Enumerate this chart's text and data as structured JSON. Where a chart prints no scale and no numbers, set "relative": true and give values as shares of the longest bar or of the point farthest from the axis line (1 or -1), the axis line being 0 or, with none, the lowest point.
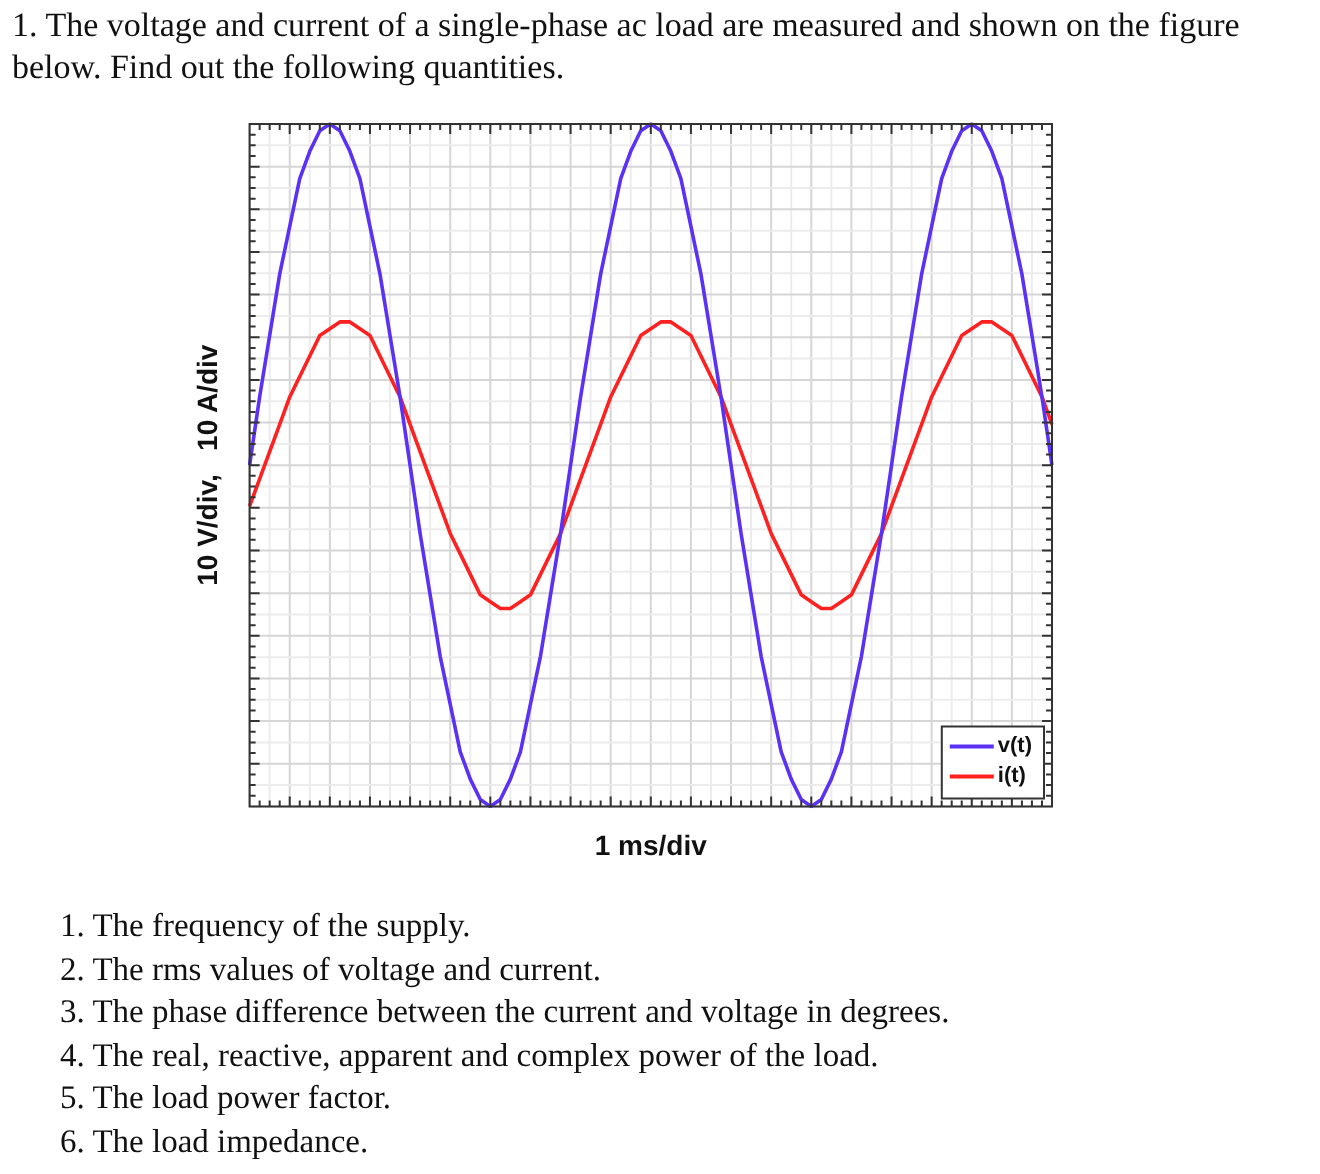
{
  "chart_data": {
    "type": "line",
    "relative": true,
    "title": "1. The voltage and current of a single-phase ac load are measured and shown on the figure below. Find out the following quantities.",
    "xlabel": "1 ms/div",
    "ylabel": "10 V/div,   10 A/div",
    "legend": "bottom right",
    "grid": true,
    "marker": "none",
    "line_style": "solid",
    "categories": [
      null,
      null,
      null,
      null,
      null,
      null,
      null,
      null,
      null,
      null,
      null,
      null,
      null,
      null,
      null,
      null,
      null,
      null,
      null,
      null,
      null,
      null,
      null,
      null,
      null,
      null,
      null,
      null,
      null,
      null,
      null,
      null,
      null,
      null,
      null,
      null,
      null,
      null,
      null,
      null,
      null,
      null,
      null,
      null,
      null,
      null,
      null,
      null,
      null,
      null,
      null,
      null,
      null,
      null,
      null,
      null,
      null,
      null,
      null,
      null,
      null,
      null,
      null,
      null,
      null,
      null,
      null,
      null,
      null,
      null,
      null,
      null,
      null,
      null,
      null,
      null,
      null,
      null,
      null,
      null,
      null
    ],
    "series": [
      {
        "name": "v(t)",
        "color": "#5b32f5",
        "values": [
          0.5,
          0.6,
          0.69,
          0.78,
          0.85,
          0.92,
          0.96,
          0.99,
          1,
          0.99,
          0.96,
          0.92,
          0.85,
          0.78,
          0.69,
          0.6,
          0.5,
          0.4,
          0.31,
          0.22,
          0.15,
          0.08,
          0.04,
          0.01,
          0,
          0.01,
          0.04,
          0.08,
          0.15,
          0.22,
          0.31,
          0.4,
          0.5,
          0.6,
          0.69,
          0.78,
          0.85,
          0.92,
          0.96,
          0.99,
          1,
          0.99,
          0.96,
          0.92,
          0.85,
          0.78,
          0.69,
          0.6,
          0.5,
          0.4,
          0.31,
          0.22,
          0.15,
          0.08,
          0.04,
          0.01,
          0,
          0.01,
          0.04,
          0.08,
          0.15,
          0.22,
          0.31,
          0.4,
          0.5,
          0.6,
          0.69,
          0.78,
          0.85,
          0.92,
          0.96,
          0.99,
          1,
          0.99,
          0.96,
          0.92,
          0.85,
          0.78,
          0.69,
          0.6,
          0.5
        ]
      },
      {
        "name": "i(t)",
        "color": "#ff2020",
        "values": [
          0.44,
          0.48,
          0.52,
          0.56,
          0.6,
          0.63,
          0.66,
          0.69,
          0.7,
          0.71,
          0.71,
          0.7,
          0.69,
          0.66,
          0.63,
          0.6,
          0.56,
          0.52,
          0.48,
          0.44,
          0.4,
          0.37,
          0.34,
          0.31,
          0.3,
          0.29,
          0.29,
          0.3,
          0.31,
          0.34,
          0.37,
          0.4,
          0.44,
          0.48,
          0.52,
          0.56,
          0.6,
          0.63,
          0.66,
          0.69,
          0.7,
          0.71,
          0.71,
          0.7,
          0.69,
          0.66,
          0.63,
          0.6,
          0.56,
          0.52,
          0.48,
          0.44,
          0.4,
          0.37,
          0.34,
          0.31,
          0.3,
          0.29,
          0.29,
          0.3,
          0.31,
          0.34,
          0.37,
          0.4,
          0.44,
          0.48,
          0.52,
          0.56,
          0.6,
          0.63,
          0.66,
          0.69,
          0.7,
          0.71,
          0.71,
          0.7,
          0.69,
          0.66,
          0.63,
          0.6,
          0.56
        ]
      }
    ],
    "annotations": [
      "1. The frequency of the supply.",
      "2. The rms values of voltage and current.",
      "3. The phase difference between the current and voltage in degrees.",
      "4. The real, reactive, apparent and complex power of the load.",
      "5. The load power factor.",
      "6. The load impedance."
    ]
  }
}
